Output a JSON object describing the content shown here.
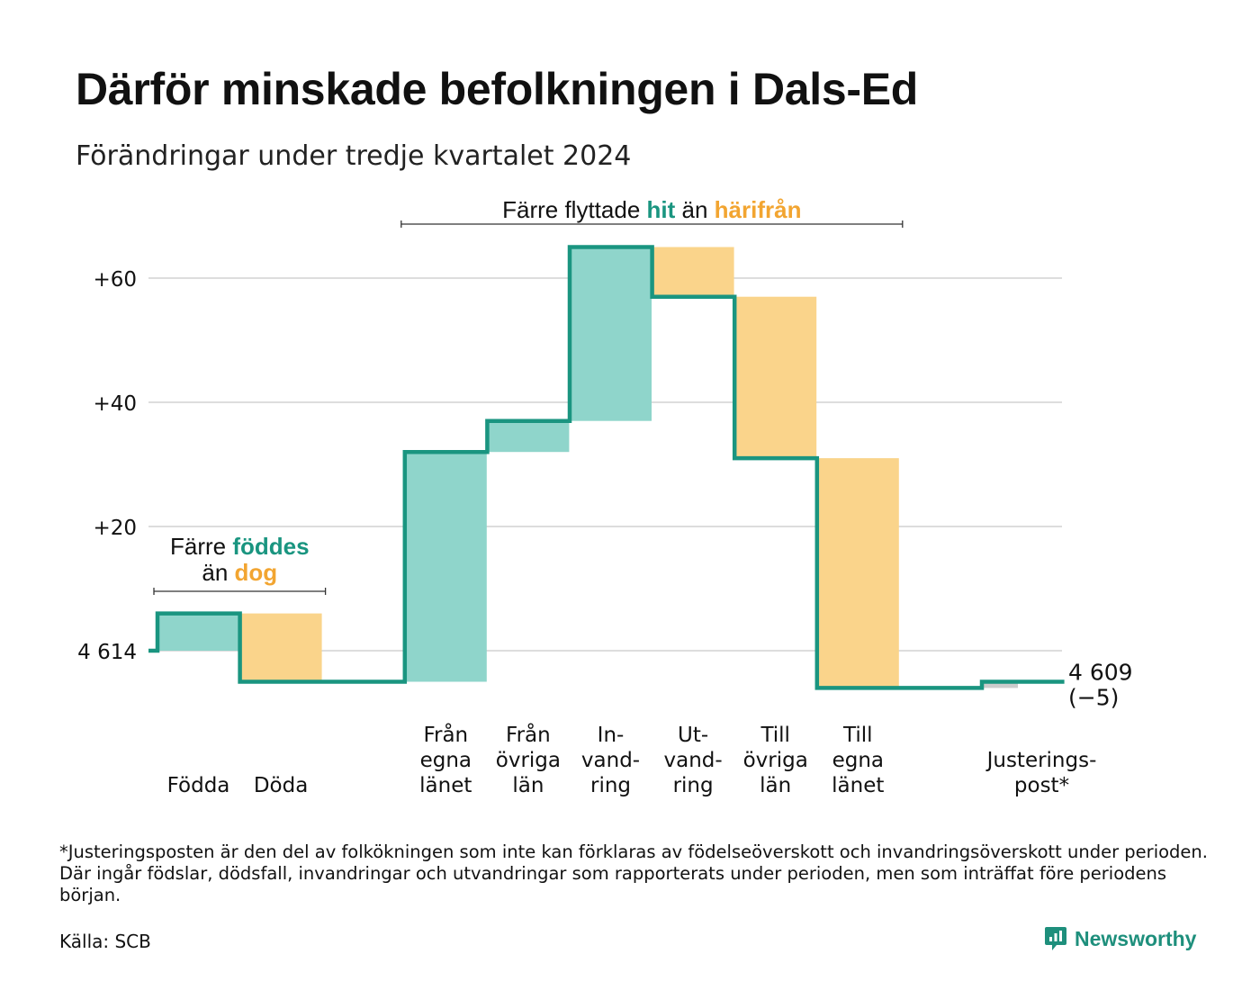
{
  "title": "Därför minskade befolkningen i Dals-Ed",
  "subtitle": "Förändringar under tredje kvartalet 2024",
  "colors": {
    "increase": "#8fd5cb",
    "decrease": "#fad48b",
    "adjustment": "#cccccc",
    "line": "#1a9580",
    "teal_text": "#1a9580",
    "orange_text": "#f2a531",
    "grid": "#dddddd"
  },
  "chart_data": {
    "type": "waterfall",
    "start_value": 4614,
    "end_value": 4609,
    "end_label": "4 609",
    "end_change_label": "(−5)",
    "ylim": [
      -7,
      67
    ],
    "yticks": [
      {
        "value": 0,
        "label": "4 614"
      },
      {
        "value": 20,
        "label": "+20"
      },
      {
        "value": 40,
        "label": "+40"
      },
      {
        "value": 60,
        "label": "+60"
      }
    ],
    "steps": [
      {
        "label": [
          "Födda"
        ],
        "delta": 6,
        "kind": "increase"
      },
      {
        "label": [
          "Döda"
        ],
        "delta": -11,
        "kind": "decrease"
      },
      {
        "label": [],
        "delta": 0,
        "kind": "gap"
      },
      {
        "label": [
          "Från",
          "egna",
          "länet"
        ],
        "delta": 37,
        "kind": "increase"
      },
      {
        "label": [
          "Från",
          "övriga",
          "län"
        ],
        "delta": 5,
        "kind": "increase"
      },
      {
        "label": [
          "In-",
          "vand-",
          "ring"
        ],
        "delta": 28,
        "kind": "increase"
      },
      {
        "label": [
          "Ut-",
          "vand-",
          "ring"
        ],
        "delta": -8,
        "kind": "decrease"
      },
      {
        "label": [
          "Till",
          "övriga",
          "län"
        ],
        "delta": -26,
        "kind": "decrease"
      },
      {
        "label": [
          "Till",
          "egna",
          "länet"
        ],
        "delta": -37,
        "kind": "decrease"
      },
      {
        "label": [],
        "delta": 0,
        "kind": "gap"
      },
      {
        "label": [
          "Justerings-",
          "post*"
        ],
        "delta": 1,
        "kind": "adjustment"
      }
    ],
    "annotations": [
      {
        "name": "births-deaths",
        "span": [
          0,
          1
        ],
        "lines": [
          [
            {
              "text": "Färre ",
              "color": "plain"
            },
            {
              "text": "föddes",
              "color": "teal"
            }
          ],
          [
            {
              "text": "än ",
              "color": "plain"
            },
            {
              "text": "dog",
              "color": "orange"
            }
          ]
        ]
      },
      {
        "name": "migration",
        "span": [
          3,
          8
        ],
        "lines": [
          [
            {
              "text": "Färre flyttade ",
              "color": "plain"
            },
            {
              "text": "hit",
              "color": "teal"
            },
            {
              "text": " än ",
              "color": "plain"
            },
            {
              "text": "härifrån",
              "color": "orange"
            }
          ]
        ]
      }
    ]
  },
  "footnote": "*Justeringsposten är den del av folkökningen som inte kan förklaras av födelseöverskott och invandringsöverskott under perioden. Där ingår födslar, dödsfall, invandringar och utvandringar som rapporterats under perioden, men som inträffat före periodens början.",
  "source": "Källa: SCB",
  "brand": {
    "name": "Newsworthy",
    "icon": "newsworthy-chart-icon"
  }
}
